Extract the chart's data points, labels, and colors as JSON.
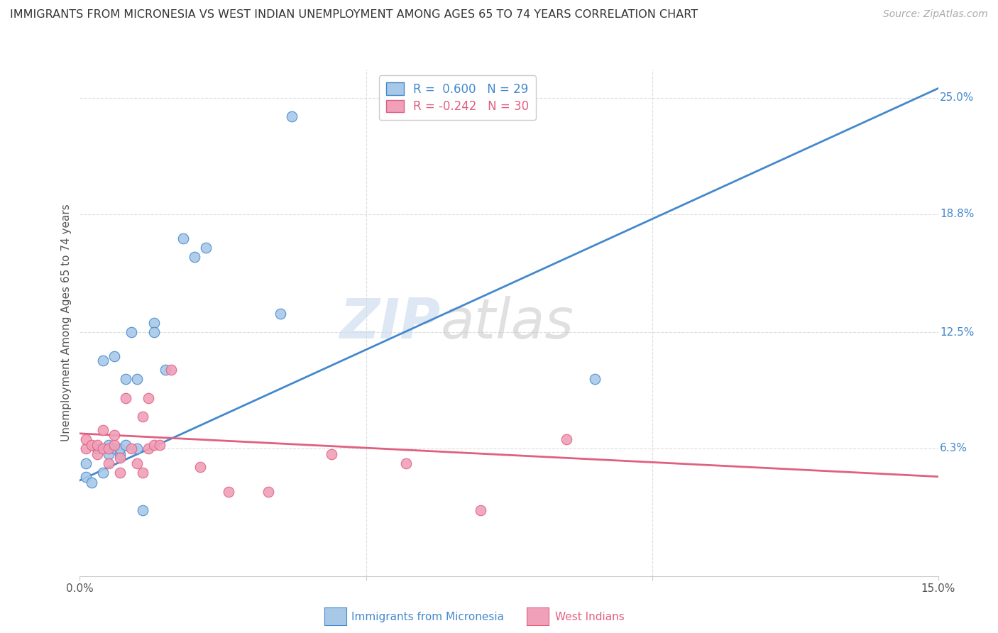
{
  "title": "IMMIGRANTS FROM MICRONESIA VS WEST INDIAN UNEMPLOYMENT AMONG AGES 65 TO 74 YEARS CORRELATION CHART",
  "source": "Source: ZipAtlas.com",
  "ylabel": "Unemployment Among Ages 65 to 74 years",
  "xlim": [
    0.0,
    0.15
  ],
  "ylim": [
    -0.005,
    0.265
  ],
  "yticks_right": [
    0.063,
    0.125,
    0.188,
    0.25
  ],
  "yticklabels_right": [
    "6.3%",
    "12.5%",
    "18.8%",
    "25.0%"
  ],
  "watermark_line1": "ZIP",
  "watermark_line2": "atlas",
  "legend_r1": "R =  0.600",
  "legend_n1": "N = 29",
  "legend_r2": "R = -0.242",
  "legend_n2": "N = 30",
  "color_micronesia": "#a8c8e8",
  "color_west_indian": "#f0a0b8",
  "color_line_micronesia": "#4488cc",
  "color_line_west_indian": "#e06080",
  "micronesia_x": [
    0.001,
    0.001,
    0.002,
    0.003,
    0.004,
    0.004,
    0.005,
    0.005,
    0.006,
    0.006,
    0.007,
    0.007,
    0.008,
    0.008,
    0.009,
    0.01,
    0.01,
    0.011,
    0.013,
    0.013,
    0.015,
    0.018,
    0.02,
    0.022,
    0.035,
    0.037,
    0.074,
    0.074,
    0.09
  ],
  "micronesia_y": [
    0.055,
    0.048,
    0.045,
    0.063,
    0.05,
    0.11,
    0.06,
    0.065,
    0.063,
    0.112,
    0.06,
    0.063,
    0.065,
    0.1,
    0.125,
    0.063,
    0.1,
    0.03,
    0.13,
    0.125,
    0.105,
    0.175,
    0.165,
    0.17,
    0.135,
    0.24,
    0.243,
    0.25,
    0.1
  ],
  "west_indian_x": [
    0.001,
    0.001,
    0.002,
    0.003,
    0.003,
    0.004,
    0.004,
    0.005,
    0.005,
    0.006,
    0.006,
    0.007,
    0.007,
    0.008,
    0.009,
    0.01,
    0.011,
    0.011,
    0.012,
    0.012,
    0.013,
    0.014,
    0.016,
    0.021,
    0.026,
    0.033,
    0.044,
    0.057,
    0.07,
    0.085
  ],
  "west_indian_y": [
    0.063,
    0.068,
    0.065,
    0.06,
    0.065,
    0.063,
    0.073,
    0.055,
    0.063,
    0.065,
    0.07,
    0.05,
    0.058,
    0.09,
    0.063,
    0.055,
    0.05,
    0.08,
    0.063,
    0.09,
    0.065,
    0.065,
    0.105,
    0.053,
    0.04,
    0.04,
    0.06,
    0.055,
    0.03,
    0.068
  ],
  "line_mic_x0": 0.0,
  "line_mic_y0": 0.046,
  "line_mic_x1": 0.15,
  "line_mic_y1": 0.255,
  "line_wi_x0": 0.0,
  "line_wi_y0": 0.071,
  "line_wi_x1": 0.15,
  "line_wi_y1": 0.048,
  "background_color": "#ffffff",
  "grid_color": "#dddddd"
}
